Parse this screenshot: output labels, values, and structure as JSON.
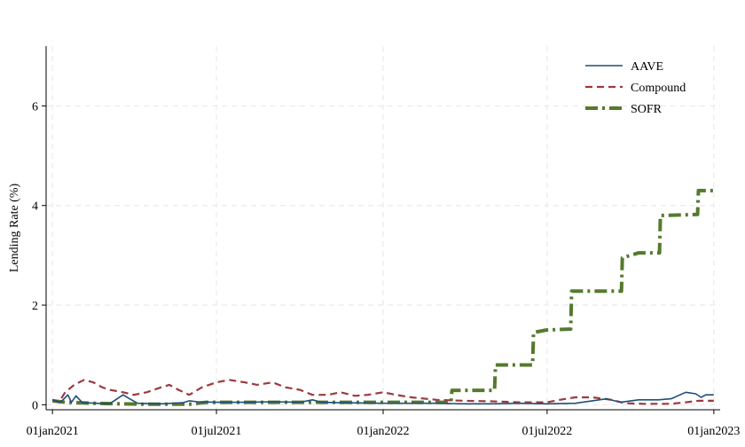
{
  "chart_data": {
    "type": "line",
    "title": "",
    "xlabel": "",
    "ylabel": "Lending Rate (%)",
    "xlim": [
      "2020-12-25",
      "2023-01-08"
    ],
    "ylim": [
      -0.1,
      7.2
    ],
    "yticks": [
      0,
      2,
      4,
      6
    ],
    "xticks": [
      {
        "date": "2021-01-01",
        "label": "01jan2021"
      },
      {
        "date": "2021-07-01",
        "label": "01jul2021"
      },
      {
        "date": "2022-01-01",
        "label": "01jan2022"
      },
      {
        "date": "2022-07-01",
        "label": "01jul2022"
      },
      {
        "date": "2023-01-01",
        "label": "01jan2023"
      }
    ],
    "grid": true,
    "legend_position": "top-right",
    "series": [
      {
        "name": "AAVE",
        "color": "#1f4e79",
        "style": "solid",
        "points": [
          [
            "2021-01-01",
            0.1
          ],
          [
            "2021-01-10",
            0.05
          ],
          [
            "2021-01-18",
            0.2
          ],
          [
            "2021-01-22",
            0.05
          ],
          [
            "2021-01-27",
            0.18
          ],
          [
            "2021-02-03",
            0.04
          ],
          [
            "2021-02-20",
            0.03
          ],
          [
            "2021-03-05",
            0.02
          ],
          [
            "2021-03-20",
            0.2
          ],
          [
            "2021-03-27",
            0.12
          ],
          [
            "2021-04-05",
            0.03
          ],
          [
            "2021-05-01",
            0.02
          ],
          [
            "2021-05-25",
            0.04
          ],
          [
            "2021-06-01",
            0.08
          ],
          [
            "2021-06-10",
            0.06
          ],
          [
            "2021-07-01",
            0.05
          ],
          [
            "2021-08-01",
            0.05
          ],
          [
            "2021-09-01",
            0.06
          ],
          [
            "2021-10-01",
            0.05
          ],
          [
            "2021-10-15",
            0.1
          ],
          [
            "2021-10-25",
            0.05
          ],
          [
            "2021-11-15",
            0.04
          ],
          [
            "2022-01-01",
            0.03
          ],
          [
            "2022-02-01",
            0.03
          ],
          [
            "2022-03-01",
            0.03
          ],
          [
            "2022-04-01",
            0.02
          ],
          [
            "2022-05-01",
            0.02
          ],
          [
            "2022-06-01",
            0.03
          ],
          [
            "2022-07-01",
            0.02
          ],
          [
            "2022-08-01",
            0.03
          ],
          [
            "2022-08-20",
            0.08
          ],
          [
            "2022-09-05",
            0.12
          ],
          [
            "2022-09-20",
            0.05
          ],
          [
            "2022-10-10",
            0.1
          ],
          [
            "2022-11-01",
            0.1
          ],
          [
            "2022-11-15",
            0.12
          ],
          [
            "2022-12-01",
            0.25
          ],
          [
            "2022-12-12",
            0.22
          ],
          [
            "2022-12-18",
            0.15
          ],
          [
            "2022-12-23",
            0.2
          ],
          [
            "2023-01-01",
            0.2
          ]
        ]
      },
      {
        "name": "Compound",
        "color": "#9b3a3f",
        "style": "dashed",
        "points": [
          [
            "2021-01-01",
            0.1
          ],
          [
            "2021-01-08",
            0.05
          ],
          [
            "2021-01-15",
            0.25
          ],
          [
            "2021-01-25",
            0.4
          ],
          [
            "2021-02-05",
            0.5
          ],
          [
            "2021-02-15",
            0.45
          ],
          [
            "2021-02-25",
            0.35
          ],
          [
            "2021-03-05",
            0.3
          ],
          [
            "2021-03-20",
            0.25
          ],
          [
            "2021-04-01",
            0.2
          ],
          [
            "2021-04-15",
            0.25
          ],
          [
            "2021-05-01",
            0.35
          ],
          [
            "2021-05-10",
            0.4
          ],
          [
            "2021-05-20",
            0.3
          ],
          [
            "2021-06-01",
            0.2
          ],
          [
            "2021-06-15",
            0.35
          ],
          [
            "2021-07-01",
            0.45
          ],
          [
            "2021-07-15",
            0.5
          ],
          [
            "2021-08-01",
            0.45
          ],
          [
            "2021-08-15",
            0.4
          ],
          [
            "2021-09-01",
            0.45
          ],
          [
            "2021-09-15",
            0.35
          ],
          [
            "2021-10-01",
            0.3
          ],
          [
            "2021-10-15",
            0.2
          ],
          [
            "2021-11-01",
            0.2
          ],
          [
            "2021-11-15",
            0.25
          ],
          [
            "2021-12-01",
            0.18
          ],
          [
            "2021-12-15",
            0.2
          ],
          [
            "2022-01-01",
            0.25
          ],
          [
            "2022-01-15",
            0.2
          ],
          [
            "2022-02-01",
            0.15
          ],
          [
            "2022-03-01",
            0.1
          ],
          [
            "2022-04-01",
            0.08
          ],
          [
            "2022-05-01",
            0.07
          ],
          [
            "2022-06-01",
            0.05
          ],
          [
            "2022-07-01",
            0.05
          ],
          [
            "2022-07-15",
            0.1
          ],
          [
            "2022-08-01",
            0.15
          ],
          [
            "2022-08-20",
            0.15
          ],
          [
            "2022-09-10",
            0.1
          ],
          [
            "2022-09-25",
            0.03
          ],
          [
            "2022-10-15",
            0.02
          ],
          [
            "2022-11-15",
            0.02
          ],
          [
            "2022-12-01",
            0.05
          ],
          [
            "2022-12-15",
            0.08
          ],
          [
            "2023-01-01",
            0.08
          ]
        ]
      },
      {
        "name": "SOFR",
        "color": "#557a2d",
        "style": "dash-dot",
        "points": [
          [
            "2021-01-01",
            0.08
          ],
          [
            "2021-01-15",
            0.05
          ],
          [
            "2021-02-15",
            0.03
          ],
          [
            "2021-03-15",
            0.02
          ],
          [
            "2021-04-15",
            0.01
          ],
          [
            "2021-06-01",
            0.01
          ],
          [
            "2021-06-20",
            0.05
          ],
          [
            "2021-09-01",
            0.05
          ],
          [
            "2022-01-01",
            0.05
          ],
          [
            "2022-03-01",
            0.05
          ],
          [
            "2022-03-17",
            0.05
          ],
          [
            "2022-03-18",
            0.29
          ],
          [
            "2022-05-04",
            0.29
          ],
          [
            "2022-05-05",
            0.8
          ],
          [
            "2022-06-15",
            0.8
          ],
          [
            "2022-06-16",
            1.45
          ],
          [
            "2022-06-30",
            1.5
          ],
          [
            "2022-07-27",
            1.52
          ],
          [
            "2022-07-28",
            2.28
          ],
          [
            "2022-09-21",
            2.28
          ],
          [
            "2022-09-22",
            2.95
          ],
          [
            "2022-10-10",
            3.05
          ],
          [
            "2022-11-02",
            3.05
          ],
          [
            "2022-11-03",
            3.8
          ],
          [
            "2022-12-14",
            3.82
          ],
          [
            "2022-12-15",
            4.3
          ],
          [
            "2023-01-01",
            4.3
          ]
        ]
      }
    ]
  }
}
